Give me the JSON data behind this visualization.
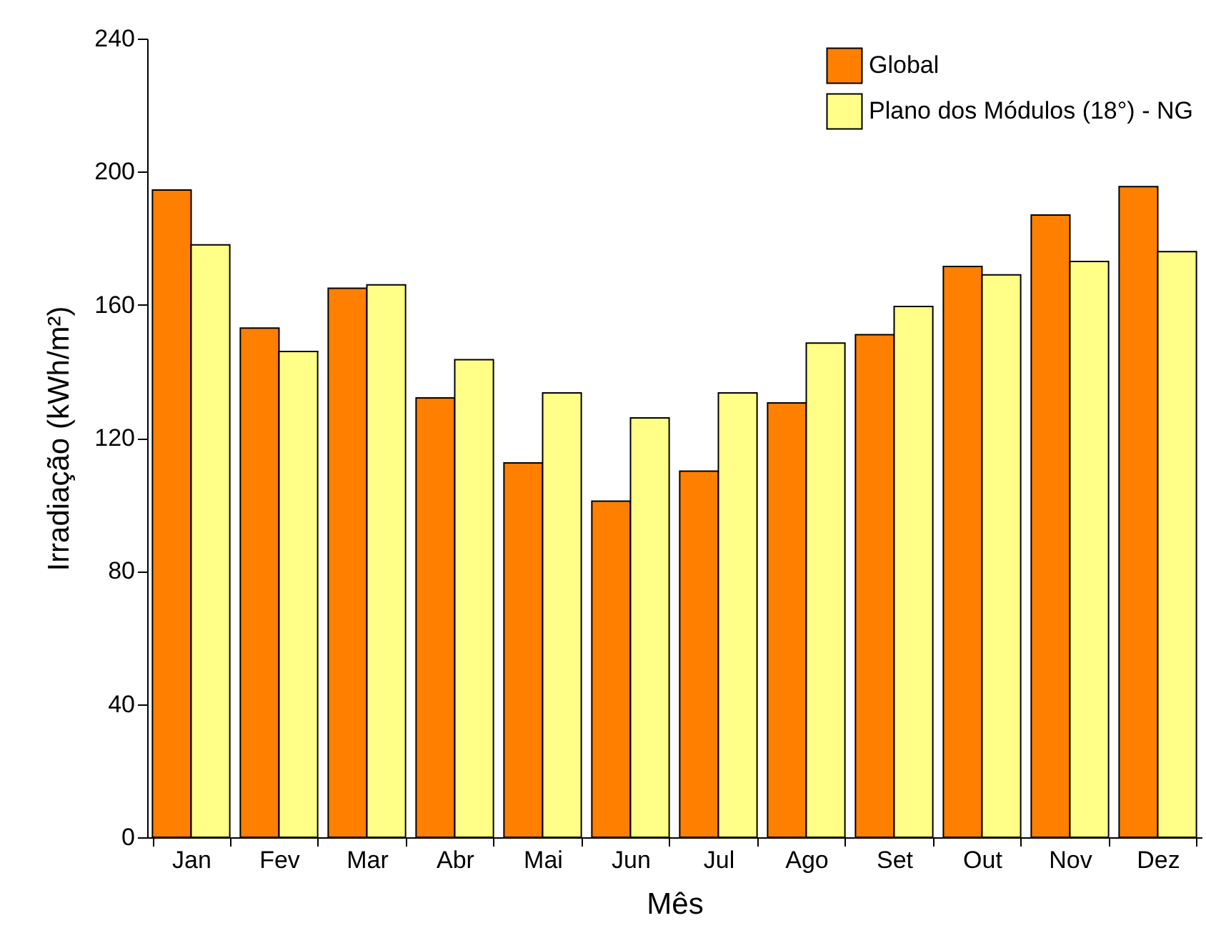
{
  "chart_data": {
    "type": "bar",
    "xlabel": "Mês",
    "ylabel": "Irradiação (kWh/m²)",
    "categories": [
      "Jan",
      "Fev",
      "Mar",
      "Abr",
      "Mai",
      "Jun",
      "Jul",
      "Ago",
      "Set",
      "Out",
      "Nov",
      "Dez"
    ],
    "series": [
      {
        "name": "Global",
        "color": "#ff7f00",
        "values": [
          194.5,
          153,
          165,
          132,
          112.5,
          101,
          110,
          130.5,
          151,
          171.5,
          187,
          195.5
        ]
      },
      {
        "name": "Plano dos Módulos (18°) - NG",
        "color": "#ffff88",
        "values": [
          178,
          146,
          166,
          143.5,
          133.5,
          126,
          133.5,
          148.5,
          159.5,
          169,
          173,
          176
        ]
      }
    ],
    "ylim": [
      0,
      240
    ],
    "yticks": [
      0,
      40,
      80,
      120,
      160,
      200,
      240
    ],
    "grid": false,
    "legend": "top right"
  }
}
